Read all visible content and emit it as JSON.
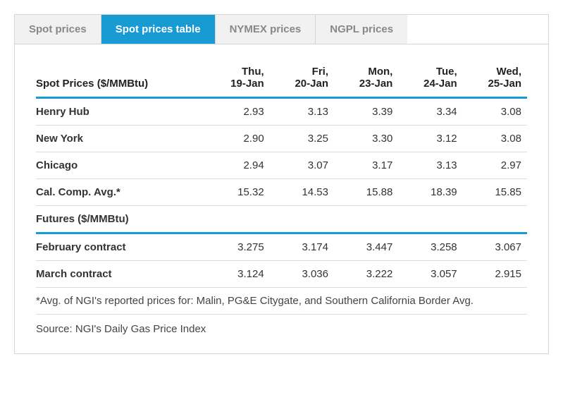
{
  "tabs": [
    {
      "label": "Spot prices",
      "active": false
    },
    {
      "label": "Spot prices table",
      "active": true
    },
    {
      "label": "NYMEX prices",
      "active": false
    },
    {
      "label": "NGPL prices",
      "active": false
    }
  ],
  "table": {
    "header_label": "Spot Prices ($/MMBtu)",
    "columns": [
      "Thu,\n19-Jan",
      "Fri,\n20-Jan",
      "Mon,\n23-Jan",
      "Tue,\n24-Jan",
      "Wed,\n25-Jan"
    ],
    "spot_rows": [
      {
        "label": "Henry Hub",
        "values": [
          "2.93",
          "3.13",
          "3.39",
          "3.34",
          "3.08"
        ]
      },
      {
        "label": "New York",
        "values": [
          "2.90",
          "3.25",
          "3.30",
          "3.12",
          "3.08"
        ]
      },
      {
        "label": "Chicago",
        "values": [
          "2.94",
          "3.07",
          "3.17",
          "3.13",
          "2.97"
        ]
      },
      {
        "label": "Cal. Comp. Avg.*",
        "values": [
          "15.32",
          "14.53",
          "15.88",
          "18.39",
          "15.85"
        ]
      }
    ],
    "futures_header": "Futures ($/MMBtu)",
    "futures_rows": [
      {
        "label": "February contract",
        "values": [
          "3.275",
          "3.174",
          "3.447",
          "3.258",
          "3.067"
        ]
      },
      {
        "label": "March contract",
        "values": [
          "3.124",
          "3.036",
          "3.222",
          "3.057",
          "2.915"
        ]
      }
    ],
    "footnote": "*Avg. of NGI's reported prices for: Malin, PG&E Citygate, and Southern California Border Avg.",
    "source": "Source: NGI's Daily Gas Price Index"
  },
  "colors": {
    "accent": "#189ad3",
    "tab_inactive_bg": "#f1f1f1",
    "tab_inactive_text": "#888888",
    "border": "#d5d5d5",
    "row_border": "#dcdcdc",
    "text": "#333333"
  }
}
